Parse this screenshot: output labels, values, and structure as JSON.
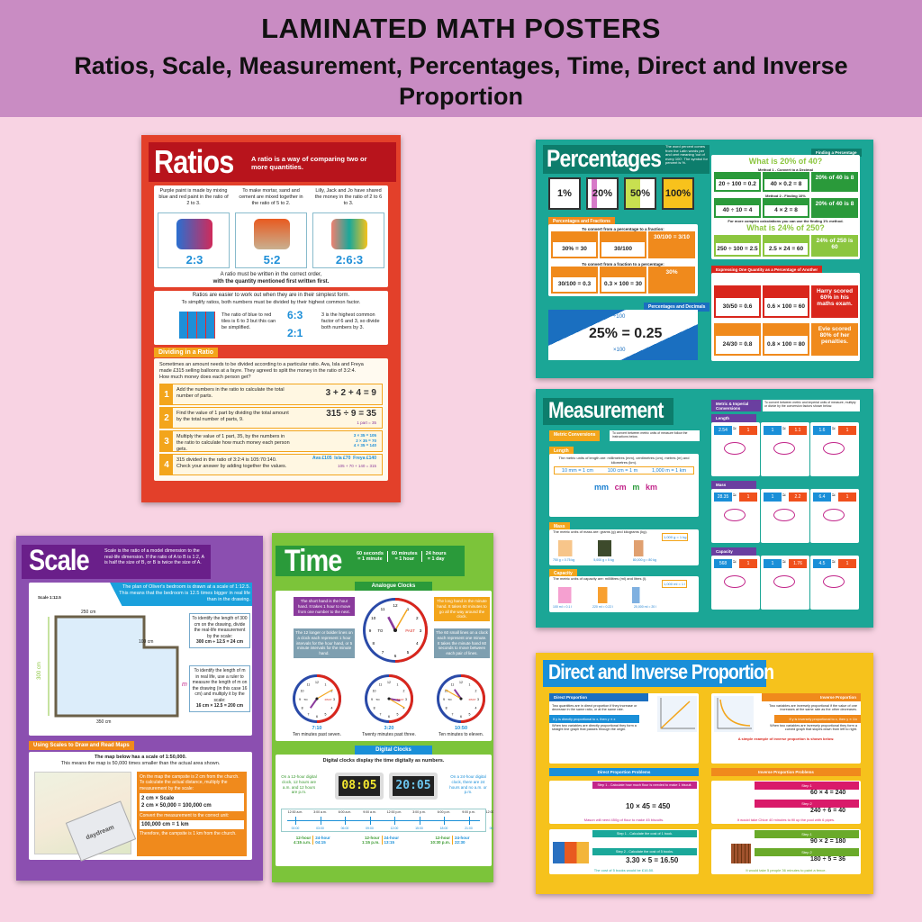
{
  "header": {
    "title": "LAMINATED MATH POSTERS",
    "subtitle": "Ratios, Scale, Measurement, Percentages, Time, Direct and Inverse Proportion"
  },
  "colors": {
    "header_band": "#c98cc3",
    "background": "#f8d3e3",
    "ratios": "#e3402a",
    "percentages": "#1ba696",
    "measurement": "#1ba696",
    "scale": "#8b4fb0",
    "time": "#7cc43a",
    "proportion": "#f6c21c"
  },
  "ratios": {
    "title": "Ratios",
    "intro": "A ratio is a way of comparing two or more quantities.",
    "examples": [
      {
        "text": "Purple paint is made by mixing blue and red paint in the ratio of 2 to 3.",
        "ratio": "2:3"
      },
      {
        "text": "To make mortar, sand and cement are mixed together in the ratio of 5 to 2.",
        "ratio": "5:2"
      },
      {
        "text": "Lilly, Jack and Jo have shared the money in the ratio of 2 to 6 to 3.",
        "ratio": "2:6:3"
      }
    ],
    "order_note_1": "A ratio must be written in the correct order,",
    "order_note_2": "with the quantity mentioned first written first.",
    "simplest_1": "Ratios are easier to work out when they are in their simplest form.",
    "simplest_2": "To simplify ratios, both numbers must be divided by their highest common factor.",
    "tiles_text": "The ratio of blue to red tiles is 6 to 3 but this can be simplified.",
    "ratio_top": "6:3",
    "ratio_bottom": "2:1",
    "hcf_text": "3 is the highest common factor of 6 and 3, so divide both numbers by 3.",
    "dividing_heading": "Dividing in a Ratio",
    "dividing_intro": "Sometimes an amount needs to be divided according to a particular ratio. Ava, Isla and Freya made £315 selling balloons at a fayre. They agreed to split the money in the ratio of 3:2:4. How much money does each person get?",
    "steps": [
      {
        "n": "1",
        "text": "Add the numbers in the ratio to calculate the total number of parts.",
        "math": "3 + 2 + 4 = 9"
      },
      {
        "n": "2",
        "text": "Find the value of 1 part by dividing the total amount by the total number of parts, 9.",
        "math": "315 ÷ 9 = 35",
        "sub": "1 part = 35"
      },
      {
        "n": "3",
        "text": "Multiply the value of 1 part, 35, by the numbers in the ratio to calculate how much money each person gets.",
        "math": "3 × 35 = 105\n2 × 35 = 70\n4 × 35 = 140"
      },
      {
        "n": "4",
        "text": "315 divided in the ratio of 3:2:4 is 105:70:140. Check your answer by adding together the values.",
        "math": "Ava £105  Isla £70  Freya £140",
        "sub": "105 + 70 + 140 = 315"
      }
    ]
  },
  "percentages": {
    "title": "Percentages",
    "intro": "The word percent comes from the Latin words per and cent meaning 'out of every 100'. The symbol for percent is %.",
    "tiles": [
      "1%",
      "20%",
      "50%",
      "100%"
    ],
    "fractions_heading": "Percentages and Fractions",
    "to_fraction": "To convert from a percentage to a fraction:",
    "to_fraction_math": [
      "30% = 30",
      "30/100",
      "30/100 = 3/10"
    ],
    "to_percent": "To convert from a fraction to a percentage:",
    "to_percent_math": [
      "30/100 = 0.3",
      "0.3 × 100 = 30",
      "30%"
    ],
    "decimals_heading": "Percentages and Decimals",
    "decimal_math": "25% = 0.25",
    "div": "÷100",
    "mul": "×100",
    "finding_heading": "Finding a Percentage",
    "q1": "What is 20% of 40?",
    "method1": "Method 1 - Convert to a Decimal",
    "m1": [
      "20 ÷ 100 = 0.2",
      "40 × 0.2 = 8",
      "20% of 40 is 8"
    ],
    "method2": "Method 2 - Finding 10%",
    "m2": [
      "40 ÷ 10 = 4",
      "4 × 2 = 8",
      "20% of 40 is 8"
    ],
    "complex": "For more complex calculations you can use the finding 1% method.",
    "q2": "What is 24% of 250?",
    "m3": [
      "250 ÷ 100 = 2.5",
      "2.5 × 24 = 60",
      "24% of 250 is 60"
    ],
    "expressing_heading": "Expressing One Quantity as a Percentage of Another",
    "e1": [
      "30/50 = 0.6",
      "0.6 × 100 = 60",
      "Harry scored 60% in his maths exam."
    ],
    "e2": [
      "24/30 = 0.8",
      "0.8 × 100 = 80",
      "Evie scored 80% of her penalties."
    ]
  },
  "measurement": {
    "title": "Measurement",
    "metric_heading": "Metric Conversions",
    "metric_note": "To convert between metric units of measure follow the instructions below.",
    "length_heading": "Length",
    "length_units": "The metric units of length are: millimetres (mm), centimetres (cm), metres (m) and kilometres (km).",
    "length_eq": [
      "10 mm = 1 cm",
      "100 cm = 1 m",
      "1,000 m = 1 km"
    ],
    "length_units_row": [
      "mm",
      "cm",
      "m",
      "km"
    ],
    "mass_heading": "Mass",
    "mass_units": "The metric units of mass are: grams (g) and kilograms (kg).",
    "mass_eq": "1,000 g = 1 kg",
    "mass_items": [
      "750 g = 0.75 kg",
      "5,000 g = 5 kg",
      "80,000 g = 80 kg"
    ],
    "capacity_heading": "Capacity",
    "capacity_units": "The metric units of capacity are: millilitres (ml) and litres (l).",
    "capacity_eq": "1,000 ml = 1 l",
    "capacity_items": [
      "100 ml = 0.1 l",
      "220 ml = 0.22 l",
      "20,000 ml = 20 l"
    ],
    "imperial_heading": "Metric & Imperial Conversions",
    "imperial_note": "To convert between metric and imperial units of measure, multiply or divide by the conversion factors shown below.",
    "imperial": [
      {
        "section": "Length",
        "rows": [
          [
            "2.54",
            "1"
          ],
          [
            "1",
            "1.1"
          ],
          [
            "1.6",
            "1"
          ]
        ]
      },
      {
        "section": "Mass",
        "rows": [
          [
            "28.35",
            "1"
          ],
          [
            "1",
            "2.2"
          ],
          [
            "6.4",
            "1"
          ]
        ]
      },
      {
        "section": "Capacity",
        "rows": [
          [
            "568",
            "1"
          ],
          [
            "1",
            "1.76"
          ],
          [
            "4.5",
            "1"
          ]
        ]
      }
    ]
  },
  "scale": {
    "title": "Scale",
    "intro": "Scale is the ratio of a model dimension to the real-life dimension. If the ratio of A to B is 1:2, A is half the size of B, or B is twice the size of A.",
    "plan_text": "The plan of Oliver's bedroom is drawn at a scale of 1:12.5. This means that the bedroom is 12.5 times bigger in real life than in the drawing.",
    "scale_label": "Scale 1:12.5",
    "dims": {
      "top": "250 cm",
      "mid": "100 cm",
      "left": "300 cm",
      "bottom": "350 cm",
      "m": "m"
    },
    "box1": "To identify the length of 300 cm on the drawing, divide the real-life measurement by the scale:",
    "box1_math": "300 cm ÷ 12.5 = 24 cm",
    "box2": "To identify the length of m in real life, use a ruler to measure the length of m on the drawing (in this case 16 cm) and multiply it by the scale:",
    "box2_math": "16 cm × 12.5 = 200 cm",
    "maps_heading": "Using Scales to Draw and Read Maps",
    "maps_1": "The map below has a scale of 1:50,000.",
    "maps_2": "This means the map is 50,000 times smaller than the actual area shown.",
    "campsite": "On the map the campsite is 2 cm from the church. To calculate the actual distance, multiply the measurement by the scale:",
    "calc_1": "2 cm × Scale",
    "calc_2": "2 cm × 50,000 = 100,000 cm",
    "convert": "Convert the measurement to the correct unit:",
    "calc_3": "100,000 cm = 1 km",
    "therefore": "Therefore, the campsite is 1 km from the church.",
    "ruler_brand": "daydream"
  },
  "time": {
    "title": "Time",
    "units": [
      {
        "a": "60 seconds",
        "b": "= 1 minute"
      },
      {
        "a": "60 minutes",
        "b": "= 1 hour"
      },
      {
        "a": "24 hours",
        "b": "= 1 day"
      }
    ],
    "analogue_heading": "Analogue Clocks",
    "short_hand": "The short hand is the hour hand. It takes 1 hour to move from one number to the next.",
    "long_hand": "The long hand is the minute hand. It takes 60 minutes to go all the way around the clock.",
    "bold_lines": "The 12 longer or bolder lines on a clock each represent 1 hour intervals for the hour hand, or 5 minute intervals for the minute hand.",
    "small_lines": "The 60 small lines on a clock each represent one minute. It takes the minute hand 60 seconds to move between each pair of lines.",
    "to": "TO",
    "past": "PAST",
    "clocks": [
      {
        "time": "7:10",
        "caption": "Ten minutes past seven."
      },
      {
        "time": "3:20",
        "caption": "Twenty minutes past three."
      },
      {
        "time": "10:50",
        "caption": "Ten minutes to eleven."
      }
    ],
    "digital_heading": "Digital Clocks",
    "digital_intro": "Digital clocks display the time digitally as numbers.",
    "twelve_note": "On a 12-hour digital clock, 12 hours are a.m. and 12 hours are p.m.",
    "twentyfour_note": "On a 24-hour digital clock, there are 24 hours and no a.m. or p.m.",
    "display_12": "08:05",
    "display_24": "20:05",
    "timeline_top": [
      "12:00 a.m.",
      "3:00 a.m.",
      "6:00 a.m.",
      "9:00 a.m.",
      "12:00 p.m.",
      "3:00 p.m.",
      "6:00 p.m.",
      "9:00 p.m.",
      "12:00 a.m."
    ],
    "timeline_bottom": [
      "00:00",
      "03:00",
      "06:00",
      "09:00",
      "12:00",
      "15:00",
      "18:00",
      "21:00",
      "00:00"
    ],
    "examples": [
      {
        "h12": "4:15 a.m.",
        "h24": "04:15"
      },
      {
        "h12": "1:15 p.m.",
        "h24": "13:15"
      },
      {
        "h12": "10:30 p.m.",
        "h24": "22:30"
      }
    ],
    "label12": "12-hour",
    "label24": "24-hour"
  },
  "proportion": {
    "title": "Direct and Inverse Proportion",
    "direct_heading": "Direct Proportion",
    "direct_text": "Two quantities are in direct proportion if they increase or decrease in the same ratio, or at the same rate.",
    "direct_rule": "If y is directly proportional to x, then y ∝ x",
    "direct_graph": "When two variables are directly proportional they form a straight line graph that passes through the origin.",
    "inverse_heading": "Inverse Proportion",
    "inverse_text": "Two variables are inversely proportional if the value of one increases at the same rate as the other decreases.",
    "inverse_rule": "If y is inversely proportional to x, then y ∝ 1/x",
    "inverse_graph": "When two variables are inversely proportional they form a curved graph that slopes down from left to right.",
    "inverse_example": "A simple example of inverse proportion is shown below.",
    "direct_problems": "Direct Proportion Problems",
    "inverse_problems": "Inverse Proportion Problems",
    "d1_step1": "Step 1 - Calculate how much flour is needed to make 1 biscuit.",
    "d1_math": "10 × 45 = 450",
    "d1_result": "Mason will need 450g of flour to make 45 biscuits.",
    "d2_step1": "Step 1 - Calculate the cost of 1 book.",
    "d2_step2": "Step 2 - Calculate the cost of 5 books.",
    "d2_math": "3.30 × 5 = 16.50",
    "d2_result": "The cost of 5 books would be £16.50.",
    "step1": "Step 1",
    "step2": "Step 2",
    "i1_math1": "60 × 4 = 240",
    "i1_math2": "240 ÷ 6 = 40",
    "i1_result": "It would take Chloe 40 minutes to fill up the pool with 6 pipes.",
    "i2_math1": "90 × 2 = 180",
    "i2_math2": "180 ÷ 5 = 36",
    "i2_result": "It would take 5 people 36 minutes to paint a fence."
  }
}
